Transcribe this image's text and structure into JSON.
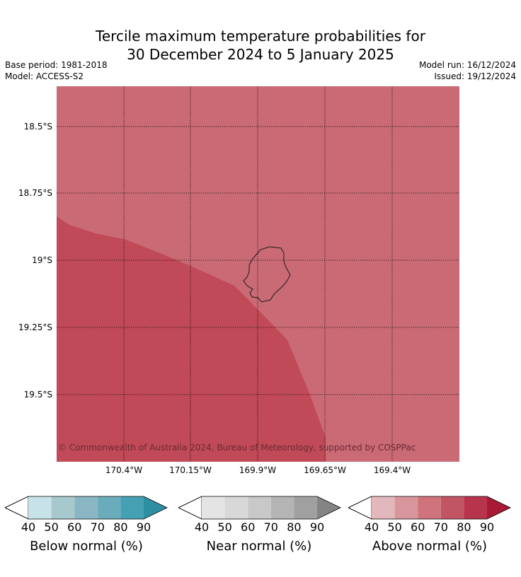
{
  "title_line1": "Tercile maximum temperature probabilities for",
  "title_line2": "30 December 2024 to 5 January 2025",
  "base_period": "Base period: 1981-2018",
  "model": "Model: ACCESS-S2",
  "model_run": "Model run: 16/12/2024",
  "issued": "Issued: 19/12/2024",
  "copyright": "© Commonwealth of Australia 2024, Bureau of Meteorology, supported by COSPPac",
  "lat_labels": [
    "18.5°S",
    "18.75°S",
    "19°S",
    "19.25°S",
    "19.5°S"
  ],
  "lon_labels": [
    "170.4°W",
    "170.15°W",
    "169.9°W",
    "169.65°W",
    "169.4°W"
  ],
  "colors": {
    "above_60_70": "#ca6a75",
    "above_70_80": "#c04a57"
  },
  "colorbars": [
    {
      "label": "Below normal (%)",
      "ticks": [
        "40",
        "50",
        "60",
        "70",
        "80",
        "90"
      ],
      "colors": [
        "#c7e2e9",
        "#a7c8cd",
        "#8ab6c3",
        "#6aacbb",
        "#46a0b3",
        "#2f8fa2"
      ]
    },
    {
      "label": "Near normal (%)",
      "ticks": [
        "40",
        "50",
        "60",
        "70",
        "80",
        "90"
      ],
      "colors": [
        "#e4e4e4",
        "#d8d8d8",
        "#c8c8c8",
        "#b4b4b4",
        "#a0a0a0",
        "#848484"
      ]
    },
    {
      "label": "Above normal (%)",
      "ticks": [
        "40",
        "50",
        "60",
        "70",
        "80",
        "90"
      ],
      "colors": [
        "#e3b8bc",
        "#d7959c",
        "#cf737c",
        "#c25564",
        "#b8344c",
        "#a81a36"
      ]
    }
  ]
}
